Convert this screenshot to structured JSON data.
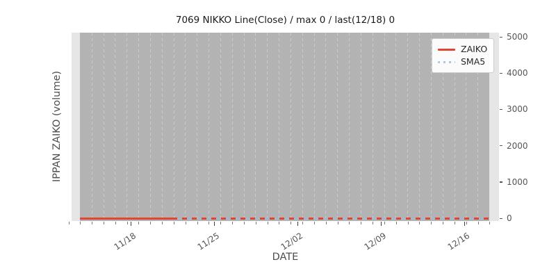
{
  "chart_data": {
    "type": "line",
    "title": "7069 NIKKO Line(Close) / max 0 / last(12/18) 0",
    "xlabel": "DATE",
    "ylabel": "IPPAN ZAIKO (volume)",
    "x_tick_labels": [
      "11/18",
      "11/25",
      "12/02",
      "12/09",
      "12/16"
    ],
    "y_tick_labels": [
      "0",
      "1000",
      "2000",
      "3000",
      "4000",
      "5000"
    ],
    "ylim": [
      0,
      5000
    ],
    "grid": {
      "orientation": "vertical",
      "style": "dashed",
      "interval": "daily"
    },
    "stats": {
      "max": 0,
      "last_date": "12/18",
      "last_value": 0
    },
    "series": [
      {
        "name": "ZAIKO",
        "line_style": "solid",
        "color": "#e24633",
        "values": [
          0,
          0,
          0,
          0,
          0
        ]
      },
      {
        "name": "SMA5",
        "line_style": "dotted",
        "color": "#aec7e8",
        "values": [
          0,
          0,
          0,
          0,
          0
        ]
      }
    ],
    "legend": {
      "position": "upper-right",
      "entries": [
        {
          "label": "ZAIKO",
          "style": "solid",
          "color": "#e24633"
        },
        {
          "label": "SMA5",
          "style": "dotted",
          "color": "#aec7e8"
        }
      ]
    },
    "colors": {
      "figure_background": "#ffffff",
      "axes_background": "#e6e6e6",
      "data_band_background": "#b3b3b3",
      "gridline": "#cdcdcd",
      "tick_text": "#555555",
      "title_text": "#1a1a1a"
    }
  }
}
